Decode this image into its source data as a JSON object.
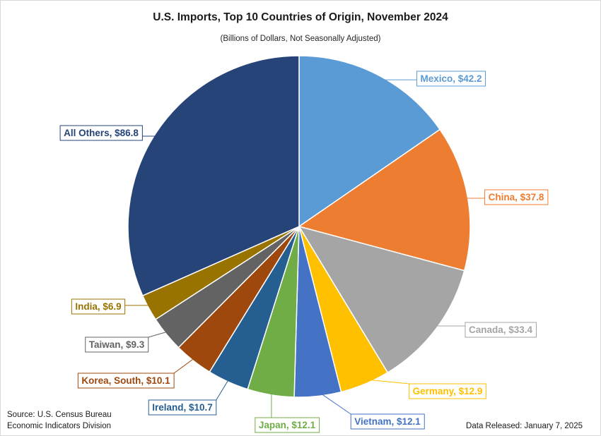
{
  "chart_data": {
    "type": "pie",
    "title": "U.S. Imports, Top 10 Countries of Origin, November 2024",
    "subtitle": "(Billions of Dollars, Not Seasonally Adjusted)",
    "slices": [
      {
        "label": "Mexico, $42.2",
        "name": "Mexico",
        "value": 42.2,
        "color": "#5b9bd5"
      },
      {
        "label": "China, $37.8",
        "name": "China",
        "value": 37.8,
        "color": "#ed7d31"
      },
      {
        "label": "Canada, $33.4",
        "name": "Canada",
        "value": 33.4,
        "color": "#a5a5a5"
      },
      {
        "label": "Germany, $12.9",
        "name": "Germany",
        "value": 12.9,
        "color": "#ffc000"
      },
      {
        "label": "Vietnam, $12.1",
        "name": "Vietnam",
        "value": 12.1,
        "color": "#4472c4"
      },
      {
        "label": "Japan, $12.1",
        "name": "Japan",
        "value": 12.1,
        "color": "#70ad47"
      },
      {
        "label": "Ireland, $10.7",
        "name": "Ireland",
        "value": 10.7,
        "color": "#255e91"
      },
      {
        "label": "Korea, South, $10.1",
        "name": "Korea, South",
        "value": 10.1,
        "color": "#9e480e"
      },
      {
        "label": "Taiwan, $9.3",
        "name": "Taiwan",
        "value": 9.3,
        "color": "#636363"
      },
      {
        "label": "India, $6.9",
        "name": "India",
        "value": 6.9,
        "color": "#997300"
      },
      {
        "label": "All Others, $86.8",
        "name": "All Others",
        "value": 86.8,
        "color": "#264478"
      }
    ]
  },
  "footer": {
    "source_line1": "Source: U.S. Census Bureau",
    "source_line2": "Economic Indicators Division",
    "released": "Data Released:  January 7, 2025"
  }
}
